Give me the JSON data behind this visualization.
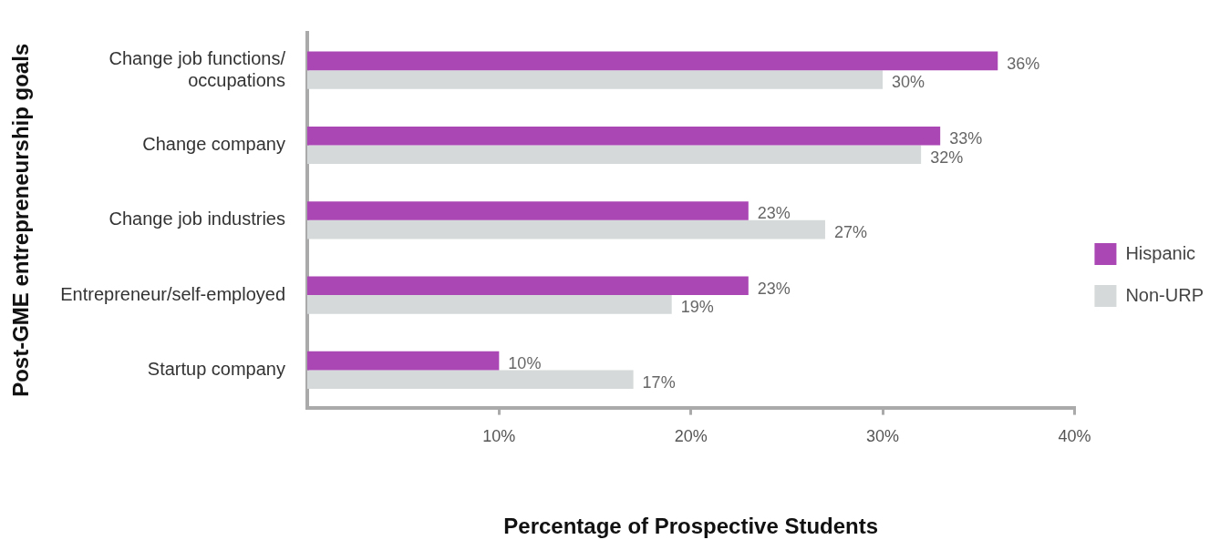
{
  "chart_data": {
    "type": "bar",
    "orientation": "horizontal",
    "xlabel": "Percentage of Prospective Students",
    "ylabel": "Post-GME entrepreneurship goals",
    "categories": [
      "Change job functions/ occupations",
      "Change company",
      "Change job industries",
      "Entrepreneur/self-employed",
      "Startup company"
    ],
    "series": [
      {
        "name": "Hispanic",
        "color": "#ab47b5",
        "values": [
          36,
          33,
          23,
          23,
          10
        ],
        "value_labels": [
          "36%",
          "33%",
          "23%",
          "23%",
          "10%"
        ]
      },
      {
        "name": "Non-URP",
        "color": "#d5d9d9",
        "values": [
          30,
          32,
          27,
          19,
          17
        ],
        "value_labels": [
          "30%",
          "32%",
          "27%",
          "19%",
          "17%"
        ]
      }
    ],
    "xlim": [
      0,
      40
    ],
    "xticks": [
      {
        "value": 10,
        "label": "10%"
      },
      {
        "value": 20,
        "label": "20%"
      },
      {
        "value": 30,
        "label": "30%"
      },
      {
        "value": 40,
        "label": "40%"
      }
    ],
    "grid": false,
    "legend": "right"
  }
}
